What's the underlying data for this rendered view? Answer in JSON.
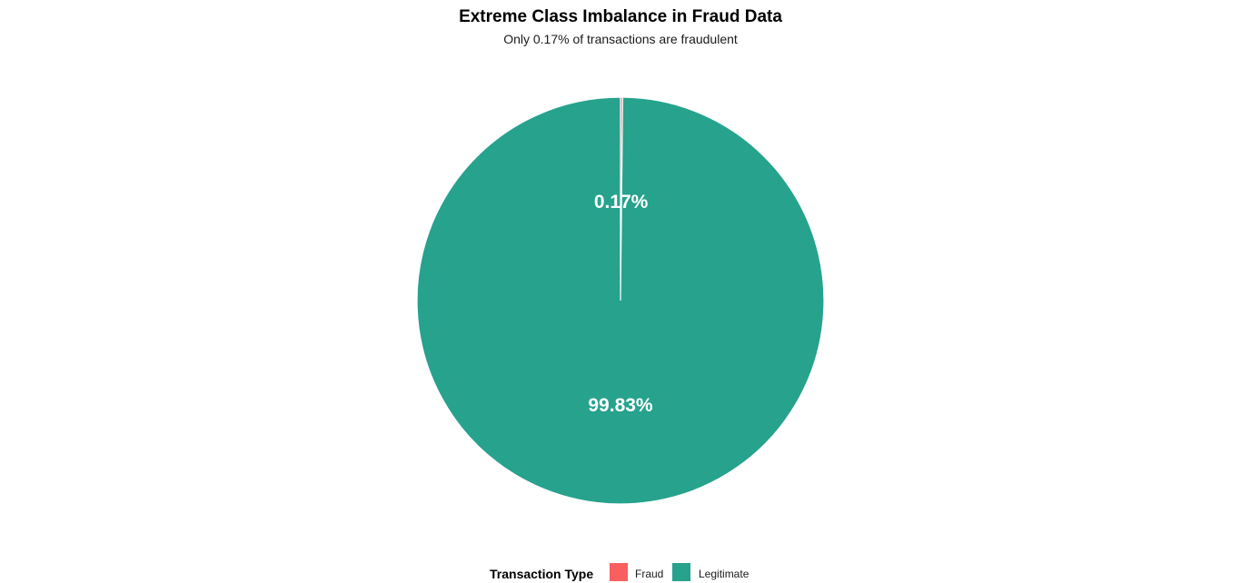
{
  "chart_data": {
    "type": "pie",
    "title": "Extreme Class Imbalance in Fraud Data",
    "subtitle": "Only 0.17% of transactions are fraudulent",
    "slices": [
      {
        "name": "Fraud",
        "value": 0.17,
        "label": "0.17%",
        "color": "#F8605F"
      },
      {
        "name": "Legitimate",
        "value": 99.83,
        "label": "99.83%",
        "color": "#26A28D"
      }
    ],
    "legend": {
      "title": "Transaction Type",
      "position": "bottom",
      "entries": [
        "Fraud",
        "Legitimate"
      ]
    }
  }
}
